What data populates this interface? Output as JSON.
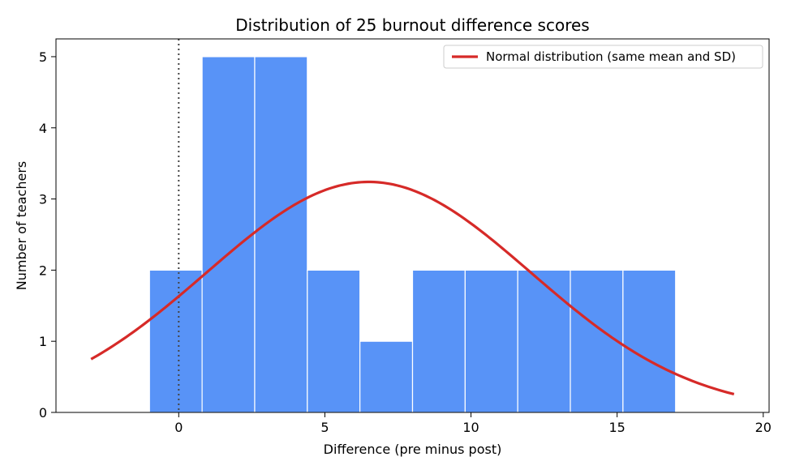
{
  "chart_data": {
    "type": "bar",
    "title": "Distribution of 25 burnout difference scores",
    "xlabel": "Difference (pre minus post)",
    "ylabel": "Number of teachers",
    "xlim": [
      -4.2,
      20.2
    ],
    "ylim": [
      0,
      5.25
    ],
    "x_ticks": [
      0,
      5,
      10,
      15,
      20
    ],
    "y_ticks": [
      0,
      1,
      2,
      3,
      4,
      5
    ],
    "bins": [
      {
        "start": -1.0,
        "end": 0.8,
        "count": 2
      },
      {
        "start": 0.8,
        "end": 2.6,
        "count": 5
      },
      {
        "start": 2.6,
        "end": 4.4,
        "count": 5
      },
      {
        "start": 4.4,
        "end": 6.2,
        "count": 2
      },
      {
        "start": 6.2,
        "end": 8.0,
        "count": 1
      },
      {
        "start": 8.0,
        "end": 9.8,
        "count": 2
      },
      {
        "start": 9.8,
        "end": 11.6,
        "count": 2
      },
      {
        "start": 11.6,
        "end": 13.4,
        "count": 2
      },
      {
        "start": 13.4,
        "end": 15.2,
        "count": 2
      },
      {
        "start": 15.2,
        "end": 17.0,
        "count": 2
      }
    ],
    "normal_curve": {
      "name": "Normal distribution (same mean and SD)",
      "mean": 6.5,
      "peak_count": 3.24,
      "sd": 5.55,
      "x_range": [
        -3,
        19
      ]
    },
    "reference_line_x": 0,
    "legend_position": "top-right",
    "grid": false,
    "colors": {
      "bar_fill": "#5893f7",
      "bar_edge": "#ffffff",
      "curve": "#d62a28",
      "reference_line": "#444444"
    }
  }
}
